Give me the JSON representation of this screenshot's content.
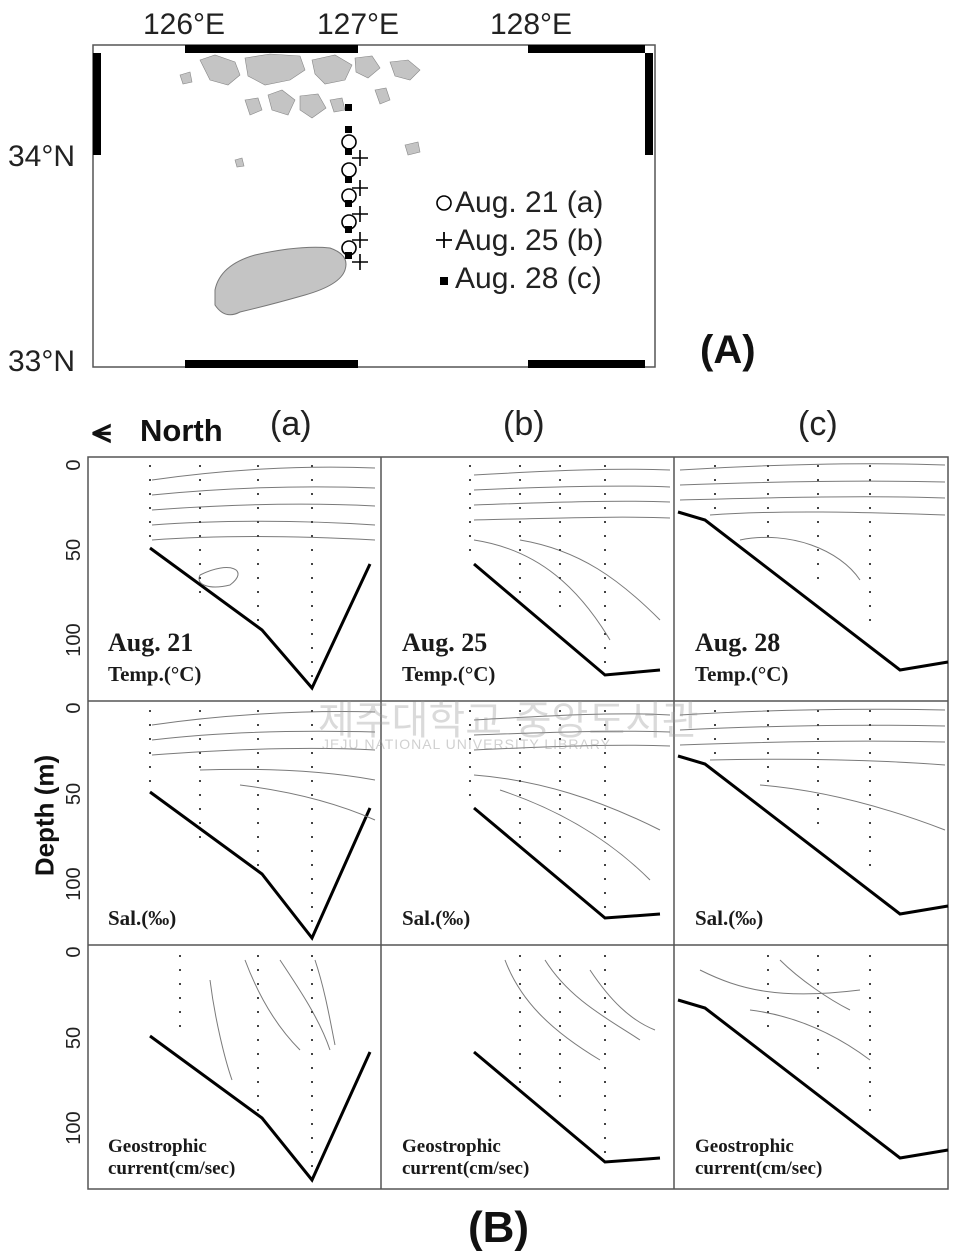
{
  "map": {
    "lon_labels": [
      "126°E",
      "127°E",
      "128°E"
    ],
    "lat_labels": [
      "34°N",
      "33°N"
    ],
    "legend": [
      {
        "symbol": "circle",
        "label": "Aug. 21 (a)"
      },
      {
        "symbol": "plus",
        "label": "Aug. 25 (b)"
      },
      {
        "symbol": "square",
        "label": "Aug. 28 (c)"
      }
    ],
    "panel_label": "(A)"
  },
  "sections": {
    "north_label": "North",
    "column_labels": [
      "(a)",
      "(b)",
      "(c)"
    ],
    "ylabel": "Depth (m)",
    "depth_ticks": [
      "0",
      "50",
      "100"
    ],
    "rows": [
      {
        "name": "temperature",
        "labels": [
          "Temp.(°C)",
          "Temp.(°C)",
          "Temp.(°C)"
        ]
      },
      {
        "name": "salinity",
        "labels": [
          "Sal.(‰)",
          "Sal.(‰)",
          "Sal.(‰)"
        ]
      },
      {
        "name": "geostrophic",
        "labels": [
          "Geostrophic current(cm/sec)",
          "Geostrophic current(cm/sec)",
          "Geostrophic current(cm/sec)"
        ]
      }
    ],
    "dates": [
      "Aug. 21",
      "Aug. 25",
      "Aug. 28"
    ],
    "panel_label": "(B)"
  },
  "watermark": {
    "text": "제주대학교 중앙도서관",
    "sub": "JEJU NATIONAL UNIVERSITY LIBRARY"
  },
  "colors": {
    "land": "#c4c4c4",
    "contour": "#7a7a7a",
    "bottom": "#000000"
  }
}
